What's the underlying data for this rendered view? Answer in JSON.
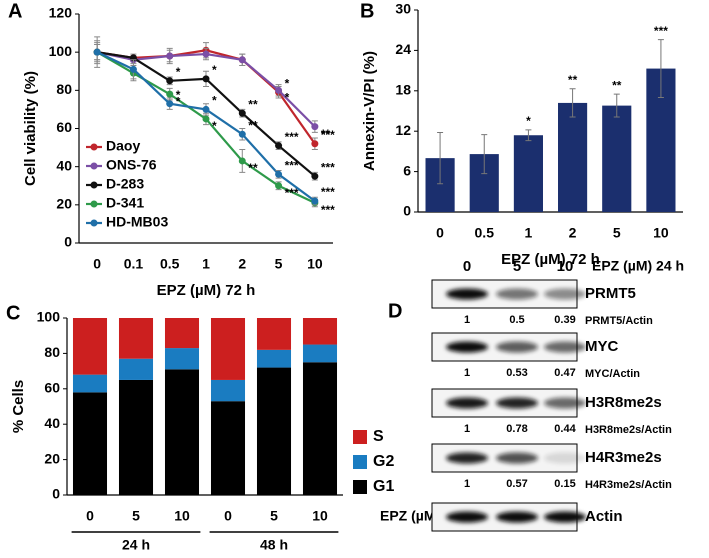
{
  "panels": [
    "A",
    "B",
    "C",
    "D"
  ],
  "chart_data": [
    {
      "type": "line",
      "ylabel": "Cell viability (%)",
      "xlabel": "EPZ (µM) 72 h",
      "categories": [
        "0",
        "0.1",
        "0.5",
        "1",
        "2",
        "5",
        "10"
      ],
      "ylim": [
        0,
        120
      ],
      "yticks": [
        0,
        20,
        40,
        60,
        80,
        100,
        120
      ],
      "series": [
        {
          "name": "Daoy",
          "color": "#c0262d",
          "values": [
            100,
            97,
            98,
            101,
            96,
            79,
            52
          ],
          "errors": [
            8,
            2,
            3,
            4,
            3,
            3,
            3
          ],
          "significance": [
            null,
            null,
            null,
            null,
            null,
            "*",
            "***"
          ]
        },
        {
          "name": "ONS-76",
          "color": "#7b4fa6",
          "values": [
            100,
            96,
            98,
            99,
            96,
            80,
            61
          ],
          "errors": [
            6,
            2,
            4,
            3,
            3,
            3,
            3
          ],
          "significance": [
            null,
            null,
            null,
            null,
            null,
            "*",
            "**"
          ]
        },
        {
          "name": "D-283",
          "color": "#111111",
          "values": [
            100,
            97,
            85,
            86,
            68,
            51,
            35
          ],
          "errors": [
            5,
            1,
            2,
            4,
            2,
            2,
            2
          ],
          "significance": [
            null,
            null,
            "*",
            "*",
            "**",
            "***",
            "***"
          ]
        },
        {
          "name": "D-341",
          "color": "#2e9a4a",
          "values": [
            100,
            89,
            78,
            65,
            43,
            30,
            21
          ],
          "errors": [
            4,
            4,
            3,
            3,
            6,
            2,
            2
          ],
          "significance": [
            null,
            null,
            "*",
            "*",
            "**",
            "***",
            "***"
          ]
        },
        {
          "name": "HD-MB03",
          "color": "#1f6fa8",
          "values": [
            100,
            91,
            73,
            70,
            57,
            36,
            22
          ],
          "errors": [
            4,
            5,
            3,
            3,
            3,
            2,
            2
          ],
          "significance": [
            null,
            null,
            "*",
            "*",
            "**",
            "***",
            "***"
          ]
        }
      ]
    },
    {
      "type": "bar",
      "ylabel": "Annexin-V/PI (%)",
      "xlabel": "EPZ (µM) 72 h",
      "categories": [
        "0",
        "0.5",
        "1",
        "2",
        "5",
        "10"
      ],
      "values": [
        8.0,
        8.6,
        11.4,
        16.2,
        15.8,
        21.3
      ],
      "errors": [
        3.8,
        2.9,
        0.8,
        2.1,
        1.7,
        4.3
      ],
      "significance": [
        null,
        null,
        "*",
        "**",
        "**",
        "***"
      ],
      "color": "#1b2f6e",
      "ylim": [
        0,
        30
      ],
      "yticks": [
        0,
        6,
        12,
        18,
        24,
        30
      ]
    },
    {
      "type": "stacked_bar",
      "ylabel": "% Cells",
      "xlabel": "EPZ (µM)",
      "categories": [
        "0",
        "5",
        "10",
        "0",
        "5",
        "10"
      ],
      "groups": [
        "24 h",
        "48 h"
      ],
      "ylim": [
        0,
        100
      ],
      "yticks": [
        0,
        20,
        40,
        60,
        80,
        100
      ],
      "series": [
        {
          "name": "G1",
          "color": "#000000",
          "values": [
            58,
            65,
            71,
            53,
            72,
            75
          ]
        },
        {
          "name": "G2",
          "color": "#1a7cc1",
          "values": [
            10,
            12,
            12,
            12,
            10,
            10
          ]
        },
        {
          "name": "S",
          "color": "#cc1f1f",
          "values": [
            32,
            23,
            17,
            35,
            18,
            15
          ]
        }
      ]
    }
  ],
  "blot": {
    "columns": [
      "0",
      "5",
      "10"
    ],
    "treatment": "EPZ (µM) 24 h",
    "rows": [
      {
        "protein": "PRMT5",
        "ratios": [
          1,
          0.5,
          0.39
        ],
        "ratio_label": "PRMT5/Actin"
      },
      {
        "protein": "MYC",
        "ratios": [
          1,
          0.53,
          0.47
        ],
        "ratio_label": "MYC/Actin"
      },
      {
        "protein": "H3R8me2s",
        "ratios": [
          1,
          0.78,
          0.44
        ],
        "ratio_label": "H3R8me2s/Actin"
      },
      {
        "protein": "H4R3me2s",
        "ratios": [
          1,
          0.57,
          0.15
        ],
        "ratio_label": "H4R3me2s/Actin"
      },
      {
        "protein": "Actin"
      }
    ]
  }
}
